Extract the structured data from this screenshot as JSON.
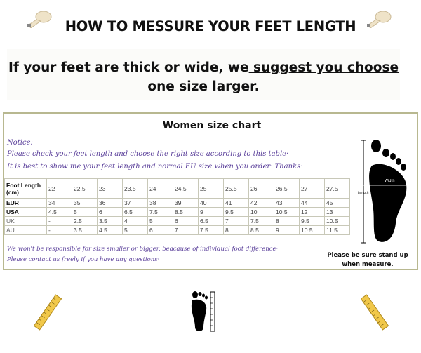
{
  "header": {
    "title": "HOW TO MESSURE YOUR FEET LENGTH",
    "left_icon": "tape-measure-icon",
    "right_icon": "tape-measure-icon"
  },
  "advice": {
    "part1": "If your feet are thick or wide, we",
    "underlined": " suggest you choose",
    "part2": " one size larger."
  },
  "chart": {
    "title": "Women size chart",
    "notice_label": "Notice:",
    "notice_lines": [
      "Please check your feet length and choose the right size according to this table·",
      "It is best to show me your feet length and normal EU size when you order· Thanks·"
    ],
    "table": {
      "rows": [
        {
          "label": "Foot Length (cm)",
          "values": [
            "22",
            "22.5",
            "23",
            "23.5",
            "24",
            "24.5",
            "25",
            "25.5",
            "26",
            "26.5",
            "27",
            "27.5"
          ]
        },
        {
          "label": "EUR",
          "values": [
            "34",
            "35",
            "36",
            "37",
            "38",
            "39",
            "40",
            "41",
            "42",
            "43",
            "44",
            "45"
          ]
        },
        {
          "label": "USA",
          "values": [
            "4.5",
            "5",
            "6",
            "6.5",
            "7.5",
            "8.5",
            "9",
            "9.5",
            "10",
            "10.5",
            "12",
            "13"
          ]
        },
        {
          "label": "UK",
          "values": [
            "-",
            "2.5",
            "3.5",
            "4",
            "5",
            "6",
            "6.5",
            "7",
            "7.5",
            "8",
            "9.5",
            "10.5"
          ]
        },
        {
          "label": "AU",
          "values": [
            "-",
            "3.5",
            "4.5",
            "5",
            "6",
            "7",
            "7.5",
            "8",
            "8.5",
            "9",
            "10.5",
            "11.5"
          ]
        }
      ]
    },
    "footer_lines": [
      "We won't be responsible for size smaller or bigger, beacause of individual foot difference·",
      "Please contact us freely if you have any questions·"
    ],
    "diagram": {
      "width_label": "Width",
      "length_label": "Length",
      "caption": "Please be sure stand up when measure."
    }
  },
  "bottom_icons": [
    "ruler-icon",
    "foot-ruler-icon",
    "ruler-icon"
  ]
}
